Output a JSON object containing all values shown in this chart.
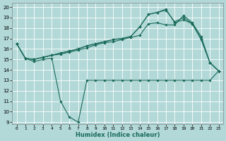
{
  "background_color": "#b2d8d8",
  "grid_color": "#ffffff",
  "line_color": "#1a6b5a",
  "x_label": "Humidex (Indice chaleur)",
  "y_ticks": [
    9,
    10,
    11,
    12,
    13,
    14,
    15,
    16,
    17,
    18,
    19,
    20
  ],
  "x_ticks": [
    0,
    1,
    2,
    3,
    4,
    5,
    6,
    7,
    8,
    9,
    10,
    11,
    12,
    13,
    14,
    15,
    16,
    17,
    18,
    19,
    20,
    21,
    22,
    23
  ],
  "ylim": [
    8.8,
    20.4
  ],
  "xlim": [
    -0.5,
    23.5
  ],
  "series": [
    {
      "x": [
        0,
        1,
        2,
        3,
        4,
        5,
        6,
        7,
        8,
        9,
        10,
        11,
        12,
        13,
        14,
        15,
        16,
        17,
        18,
        19,
        20,
        21,
        22,
        23
      ],
      "y": [
        16.5,
        15.1,
        14.8,
        15.0,
        15.1,
        11.0,
        9.5,
        9.0,
        13.0,
        13.0,
        13.0,
        13.0,
        13.0,
        13.0,
        13.0,
        13.0,
        13.0,
        13.0,
        13.0,
        13.0,
        13.0,
        13.0,
        13.0,
        13.9
      ]
    },
    {
      "x": [
        0,
        1,
        2,
        3,
        4,
        5,
        6,
        7,
        8,
        9,
        10,
        11,
        12,
        13,
        14,
        15,
        16,
        17,
        18,
        19,
        20,
        21,
        22,
        23
      ],
      "y": [
        16.5,
        15.1,
        15.0,
        15.2,
        15.4,
        15.5,
        15.7,
        15.9,
        16.1,
        16.4,
        16.6,
        16.7,
        16.9,
        17.1,
        17.3,
        18.4,
        18.5,
        18.3,
        18.3,
        19.2,
        18.5,
        17.2,
        14.7,
        13.9
      ]
    },
    {
      "x": [
        0,
        1,
        2,
        3,
        4,
        5,
        6,
        7,
        8,
        9,
        10,
        11,
        12,
        13,
        14,
        15,
        16,
        17,
        18,
        19,
        20,
        21,
        22,
        23
      ],
      "y": [
        16.5,
        15.1,
        15.0,
        15.2,
        15.4,
        15.6,
        15.8,
        16.0,
        16.3,
        16.5,
        16.7,
        16.9,
        17.0,
        17.2,
        18.1,
        19.3,
        19.5,
        19.7,
        18.6,
        19.0,
        18.4,
        17.0,
        14.7,
        13.9
      ]
    },
    {
      "x": [
        0,
        1,
        2,
        3,
        4,
        5,
        6,
        7,
        8,
        9,
        10,
        11,
        12,
        13,
        14,
        15,
        16,
        17,
        18,
        19,
        20,
        21,
        22,
        23
      ],
      "y": [
        16.5,
        15.1,
        15.0,
        15.2,
        15.4,
        15.6,
        15.8,
        16.0,
        16.3,
        16.5,
        16.7,
        16.9,
        17.0,
        17.2,
        18.1,
        19.3,
        19.5,
        19.8,
        18.5,
        18.8,
        18.4,
        16.9,
        14.7,
        13.9
      ]
    }
  ]
}
